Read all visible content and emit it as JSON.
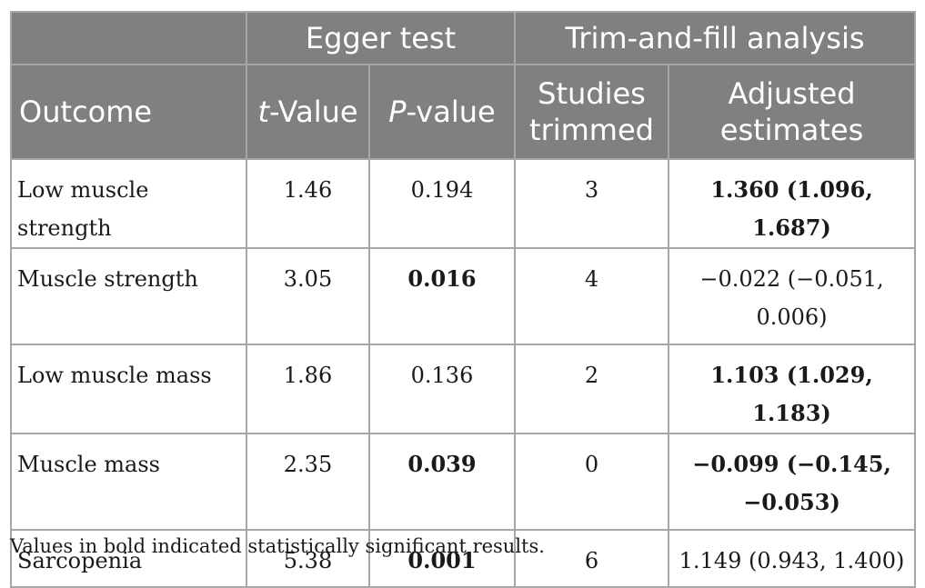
{
  "header": {
    "group_egger": "Egger test",
    "group_trim": "Trim-and-fill analysis",
    "col_outcome": "Outcome",
    "col_t_italic": "t",
    "col_t_rest": "-Value",
    "col_p_italic": "P",
    "col_p_rest": "-value",
    "col_studies": "Studies trimmed",
    "col_adjusted": "Adjusted estimates"
  },
  "rows": [
    {
      "outcome": "Low muscle strength",
      "t": "1.46",
      "p": "0.194",
      "p_bold": false,
      "studies": "3",
      "adjusted": "1.360 (1.096, 1.687)",
      "adjusted_bold": true
    },
    {
      "outcome": "Muscle strength",
      "t": "3.05",
      "p": "0.016",
      "p_bold": true,
      "studies": "4",
      "adjusted": "−0.022 (−0.051, 0.006)",
      "adjusted_bold": false
    },
    {
      "outcome": "Low muscle mass",
      "t": "1.86",
      "p": "0.136",
      "p_bold": false,
      "studies": "2",
      "adjusted": "1.103 (1.029, 1.183)",
      "adjusted_bold": true
    },
    {
      "outcome": "Muscle mass",
      "t": "2.35",
      "p": "0.039",
      "p_bold": true,
      "studies": "0",
      "adjusted": "−0.099 (−0.145, −0.053)",
      "adjusted_bold": true
    },
    {
      "outcome": "Sarcopenia",
      "t": "5.38",
      "p": "0.001",
      "p_bold": true,
      "studies": "6",
      "adjusted": "1.149 (0.943, 1.400)",
      "adjusted_bold": false
    }
  ],
  "footnote": "Values in bold indicated statistically significant results.",
  "colors": {
    "header_bg": "#808080",
    "header_text": "#ffffff",
    "border": "#a6a6a6"
  }
}
